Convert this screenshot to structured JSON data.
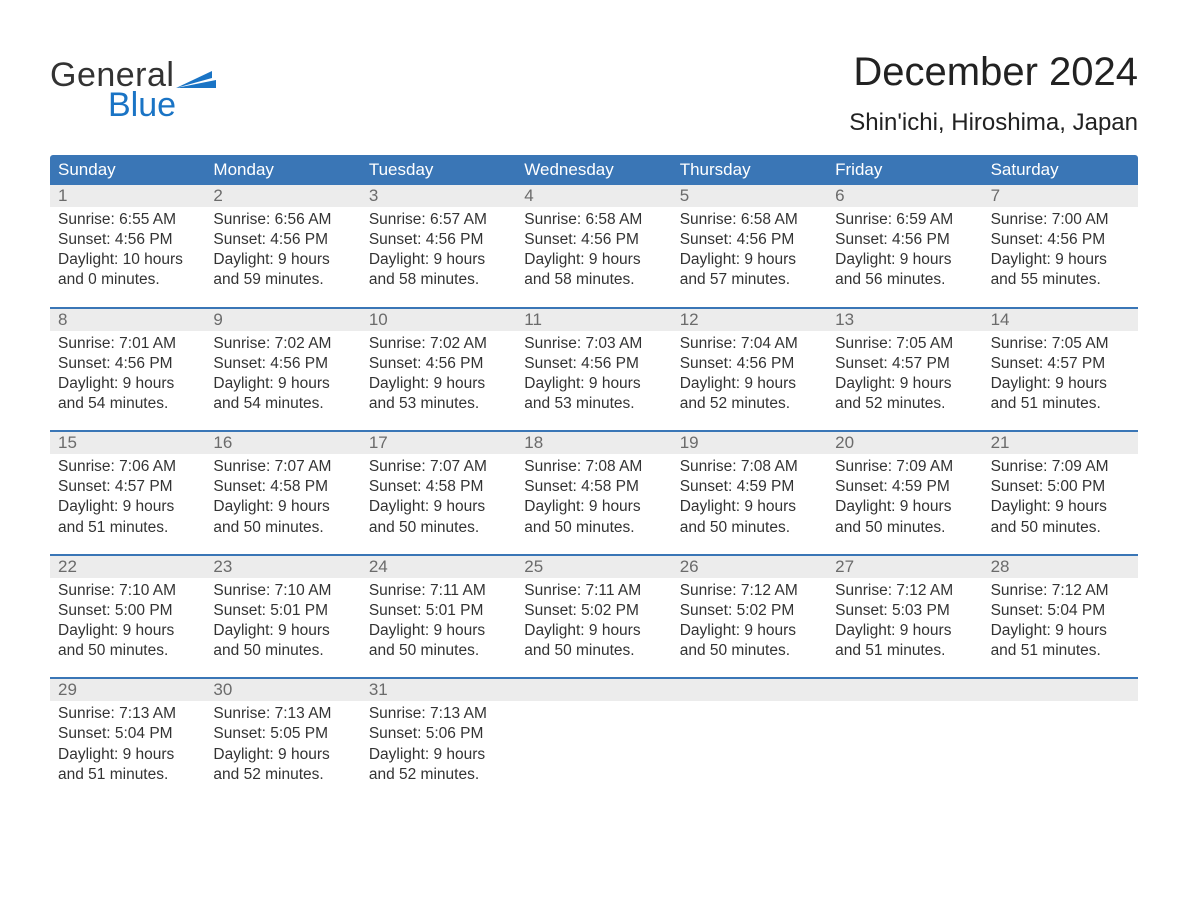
{
  "logo": {
    "text1": "General",
    "text2": "Blue",
    "flag_color": "#1a74c5"
  },
  "title": "December 2024",
  "subtitle": "Shin'ichi, Hiroshima, Japan",
  "header_bg_color": "#3a76b6",
  "header_text_color": "#ffffff",
  "daynum_bg_color": "#ececec",
  "week_border_color": "#3a76b6",
  "body_bg_color": "#ffffff",
  "text_color": "#333333",
  "days_of_week": [
    "Sunday",
    "Monday",
    "Tuesday",
    "Wednesday",
    "Thursday",
    "Friday",
    "Saturday"
  ],
  "weeks": [
    [
      {
        "n": "1",
        "sunrise": "6:55 AM",
        "sunset": "4:56 PM",
        "dl1": "10 hours",
        "dl2": "and 0 minutes."
      },
      {
        "n": "2",
        "sunrise": "6:56 AM",
        "sunset": "4:56 PM",
        "dl1": "9 hours",
        "dl2": "and 59 minutes."
      },
      {
        "n": "3",
        "sunrise": "6:57 AM",
        "sunset": "4:56 PM",
        "dl1": "9 hours",
        "dl2": "and 58 minutes."
      },
      {
        "n": "4",
        "sunrise": "6:58 AM",
        "sunset": "4:56 PM",
        "dl1": "9 hours",
        "dl2": "and 58 minutes."
      },
      {
        "n": "5",
        "sunrise": "6:58 AM",
        "sunset": "4:56 PM",
        "dl1": "9 hours",
        "dl2": "and 57 minutes."
      },
      {
        "n": "6",
        "sunrise": "6:59 AM",
        "sunset": "4:56 PM",
        "dl1": "9 hours",
        "dl2": "and 56 minutes."
      },
      {
        "n": "7",
        "sunrise": "7:00 AM",
        "sunset": "4:56 PM",
        "dl1": "9 hours",
        "dl2": "and 55 minutes."
      }
    ],
    [
      {
        "n": "8",
        "sunrise": "7:01 AM",
        "sunset": "4:56 PM",
        "dl1": "9 hours",
        "dl2": "and 54 minutes."
      },
      {
        "n": "9",
        "sunrise": "7:02 AM",
        "sunset": "4:56 PM",
        "dl1": "9 hours",
        "dl2": "and 54 minutes."
      },
      {
        "n": "10",
        "sunrise": "7:02 AM",
        "sunset": "4:56 PM",
        "dl1": "9 hours",
        "dl2": "and 53 minutes."
      },
      {
        "n": "11",
        "sunrise": "7:03 AM",
        "sunset": "4:56 PM",
        "dl1": "9 hours",
        "dl2": "and 53 minutes."
      },
      {
        "n": "12",
        "sunrise": "7:04 AM",
        "sunset": "4:56 PM",
        "dl1": "9 hours",
        "dl2": "and 52 minutes."
      },
      {
        "n": "13",
        "sunrise": "7:05 AM",
        "sunset": "4:57 PM",
        "dl1": "9 hours",
        "dl2": "and 52 minutes."
      },
      {
        "n": "14",
        "sunrise": "7:05 AM",
        "sunset": "4:57 PM",
        "dl1": "9 hours",
        "dl2": "and 51 minutes."
      }
    ],
    [
      {
        "n": "15",
        "sunrise": "7:06 AM",
        "sunset": "4:57 PM",
        "dl1": "9 hours",
        "dl2": "and 51 minutes."
      },
      {
        "n": "16",
        "sunrise": "7:07 AM",
        "sunset": "4:58 PM",
        "dl1": "9 hours",
        "dl2": "and 50 minutes."
      },
      {
        "n": "17",
        "sunrise": "7:07 AM",
        "sunset": "4:58 PM",
        "dl1": "9 hours",
        "dl2": "and 50 minutes."
      },
      {
        "n": "18",
        "sunrise": "7:08 AM",
        "sunset": "4:58 PM",
        "dl1": "9 hours",
        "dl2": "and 50 minutes."
      },
      {
        "n": "19",
        "sunrise": "7:08 AM",
        "sunset": "4:59 PM",
        "dl1": "9 hours",
        "dl2": "and 50 minutes."
      },
      {
        "n": "20",
        "sunrise": "7:09 AM",
        "sunset": "4:59 PM",
        "dl1": "9 hours",
        "dl2": "and 50 minutes."
      },
      {
        "n": "21",
        "sunrise": "7:09 AM",
        "sunset": "5:00 PM",
        "dl1": "9 hours",
        "dl2": "and 50 minutes."
      }
    ],
    [
      {
        "n": "22",
        "sunrise": "7:10 AM",
        "sunset": "5:00 PM",
        "dl1": "9 hours",
        "dl2": "and 50 minutes."
      },
      {
        "n": "23",
        "sunrise": "7:10 AM",
        "sunset": "5:01 PM",
        "dl1": "9 hours",
        "dl2": "and 50 minutes."
      },
      {
        "n": "24",
        "sunrise": "7:11 AM",
        "sunset": "5:01 PM",
        "dl1": "9 hours",
        "dl2": "and 50 minutes."
      },
      {
        "n": "25",
        "sunrise": "7:11 AM",
        "sunset": "5:02 PM",
        "dl1": "9 hours",
        "dl2": "and 50 minutes."
      },
      {
        "n": "26",
        "sunrise": "7:12 AM",
        "sunset": "5:02 PM",
        "dl1": "9 hours",
        "dl2": "and 50 minutes."
      },
      {
        "n": "27",
        "sunrise": "7:12 AM",
        "sunset": "5:03 PM",
        "dl1": "9 hours",
        "dl2": "and 51 minutes."
      },
      {
        "n": "28",
        "sunrise": "7:12 AM",
        "sunset": "5:04 PM",
        "dl1": "9 hours",
        "dl2": "and 51 minutes."
      }
    ],
    [
      {
        "n": "29",
        "sunrise": "7:13 AM",
        "sunset": "5:04 PM",
        "dl1": "9 hours",
        "dl2": "and 51 minutes."
      },
      {
        "n": "30",
        "sunrise": "7:13 AM",
        "sunset": "5:05 PM",
        "dl1": "9 hours",
        "dl2": "and 52 minutes."
      },
      {
        "n": "31",
        "sunrise": "7:13 AM",
        "sunset": "5:06 PM",
        "dl1": "9 hours",
        "dl2": "and 52 minutes."
      },
      null,
      null,
      null,
      null
    ]
  ],
  "labels": {
    "sunrise_prefix": "Sunrise: ",
    "sunset_prefix": "Sunset: ",
    "daylight_prefix": "Daylight: "
  }
}
